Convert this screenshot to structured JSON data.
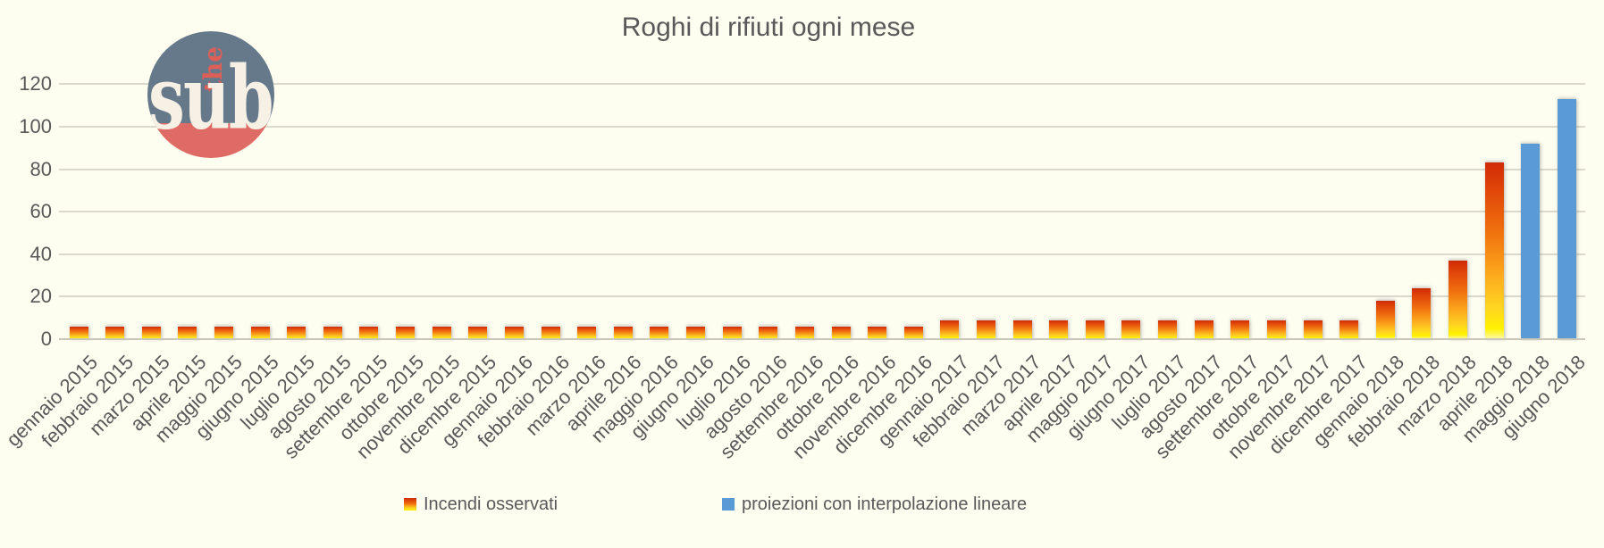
{
  "title": "Roghi di rifiuti ogni mese",
  "logo": {
    "top_word": "the",
    "main_word": "sub"
  },
  "legend": {
    "items": [
      {
        "label": "Incendi osservati",
        "swatch": "flame-gradient-square"
      },
      {
        "label": "proiezioni con interpolazione lineare",
        "swatch": "blue-square"
      }
    ],
    "position": "bottom"
  },
  "colors": {
    "background": "#FDFDF0",
    "text": "#595959",
    "gridline": "#DAD9CC",
    "axis_line": "#C7C6B9",
    "flame_gradient_top": "#CF2B04",
    "flame_gradient_mid": "#EF6E0E",
    "flame_gradient_bottom": "#FFF200",
    "projection_blue": "#5B9BD5",
    "logo_slate": "#66798B",
    "logo_coral": "#DF6B66",
    "logo_cream": "#F6F1E4"
  },
  "chart_data": {
    "type": "bar",
    "title": "Roghi di rifiuti ogni mese",
    "xlabel": "",
    "ylabel": "",
    "ylim": [
      0,
      130
    ],
    "yticks": [
      0,
      20,
      40,
      60,
      80,
      100,
      120
    ],
    "grid": true,
    "legend_position": "bottom",
    "categories": [
      "gennaio 2015",
      "febbraio 2015",
      "marzo 2015",
      "aprile 2015",
      "maggio 2015",
      "giugno 2015",
      "luglio 2015",
      "agosto 2015",
      "settembre 2015",
      "ottobre 2015",
      "novembre 2015",
      "dicembre 2015",
      "gennaio 2016",
      "febbraio 2016",
      "marzo 2016",
      "aprile 2016",
      "maggio 2016",
      "giugno 2016",
      "luglio 2016",
      "agosto 2016",
      "settembre 2016",
      "ottobre 2016",
      "novembre 2016",
      "dicembre 2016",
      "gennaio 2017",
      "febbraio 2017",
      "marzo 2017",
      "aprile 2017",
      "maggio 2017",
      "giugno 2017",
      "luglio 2017",
      "agosto 2017",
      "settembre 2017",
      "ottobre 2017",
      "novembre 2017",
      "dicembre 2017",
      "gennaio 2018",
      "febbraio 2018",
      "marzo 2018",
      "aprile 2018",
      "maggio 2018",
      "giugno 2018"
    ],
    "series": [
      {
        "name": "Incendi osservati",
        "color": "flame-gradient",
        "values": [
          6,
          6,
          6,
          6,
          6,
          6,
          6,
          6,
          6,
          6,
          6,
          6,
          6,
          6,
          6,
          6,
          6,
          6,
          6,
          6,
          6,
          6,
          6,
          6,
          9,
          9,
          9,
          9,
          9,
          9,
          9,
          9,
          9,
          9,
          9,
          9,
          18,
          24,
          37,
          83,
          null,
          null
        ]
      },
      {
        "name": "proiezioni con interpolazione lineare",
        "color": "#5B9BD5",
        "values": [
          null,
          null,
          null,
          null,
          null,
          null,
          null,
          null,
          null,
          null,
          null,
          null,
          null,
          null,
          null,
          null,
          null,
          null,
          null,
          null,
          null,
          null,
          null,
          null,
          null,
          null,
          null,
          null,
          null,
          null,
          null,
          null,
          null,
          null,
          null,
          null,
          null,
          null,
          null,
          null,
          92,
          113
        ]
      }
    ]
  }
}
